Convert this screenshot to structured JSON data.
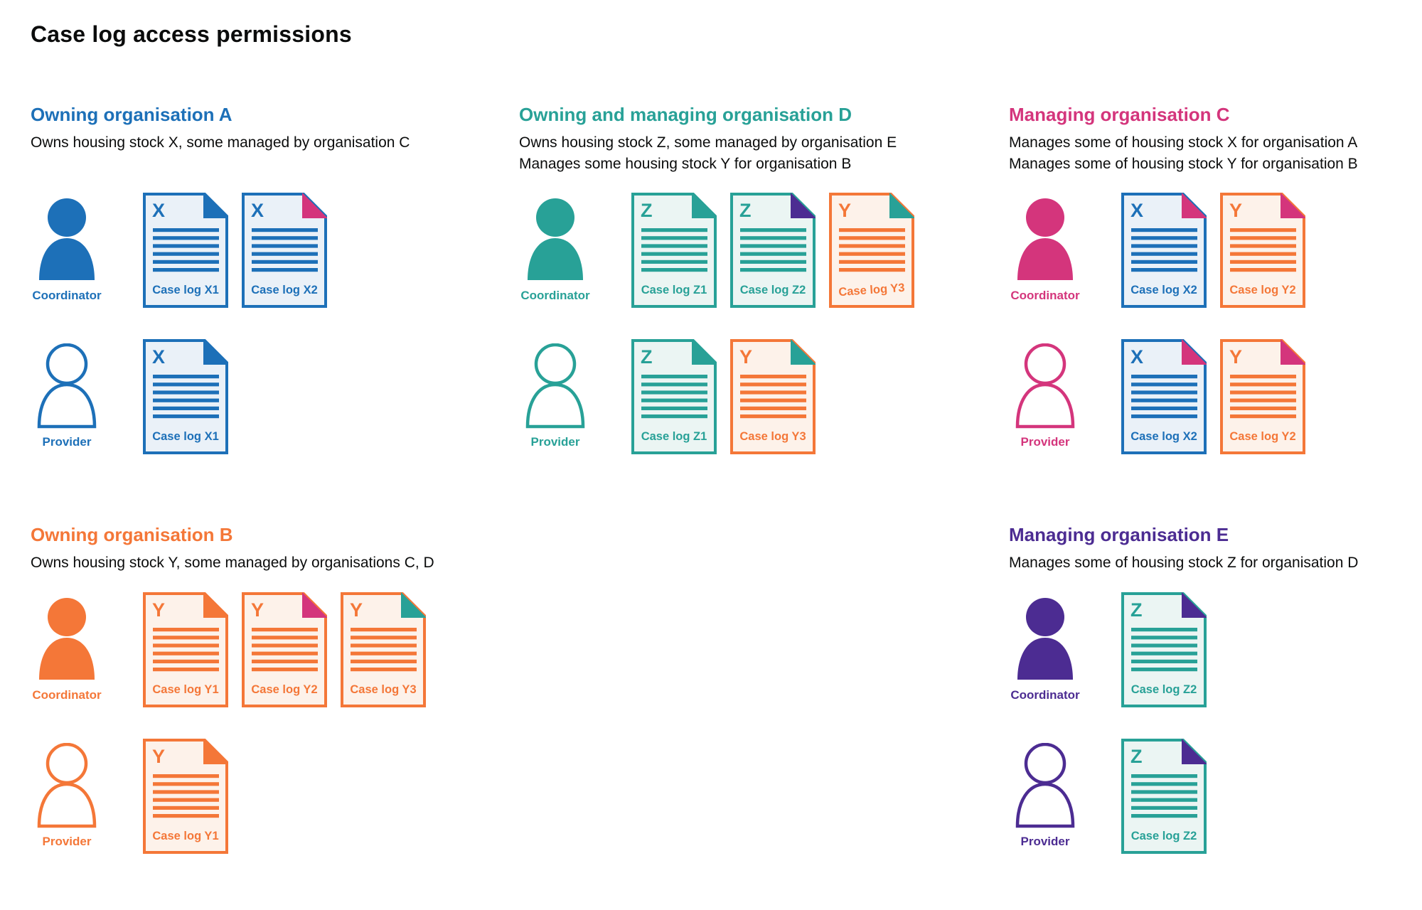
{
  "page_title": "Case log access permissions",
  "colors": {
    "blue": "#1d70b8",
    "teal": "#28a197",
    "pink": "#d4357c",
    "orange": "#f47738",
    "purple": "#4c2c92",
    "text": "#0b0c0c",
    "fills": {
      "blue": "#eaf1f8",
      "teal": "#ebf5f3",
      "orange": "#fdf2ea"
    }
  },
  "sections": [
    {
      "title": "Owning organisation A",
      "color": "blue",
      "description": [
        "Owns housing stock X, some managed by organisation C"
      ],
      "layout": {
        "col": 1,
        "row": 1
      },
      "rows": [
        {
          "role": "Coordinator",
          "person_style": "filled",
          "documents": [
            {
              "letter": "X",
              "label": "Case log X1",
              "color": "blue",
              "fold": "blue"
            },
            {
              "letter": "X",
              "label": "Case log X2",
              "color": "blue",
              "fold": "pink"
            }
          ]
        },
        {
          "role": "Provider",
          "person_style": "outline",
          "documents": [
            {
              "letter": "X",
              "label": "Case log X1",
              "color": "blue",
              "fold": "blue"
            }
          ]
        }
      ]
    },
    {
      "title": "Owning and managing organisation D",
      "color": "teal",
      "description": [
        "Owns housing stock Z, some managed by organisation E",
        "Manages some housing stock Y for organisation B"
      ],
      "layout": {
        "col": 2,
        "row": 1
      },
      "rows": [
        {
          "role": "Coordinator",
          "person_style": "filled",
          "documents": [
            {
              "letter": "Z",
              "label": "Case log Z1",
              "color": "teal",
              "fold": "teal"
            },
            {
              "letter": "Z",
              "label": "Case log Z2",
              "color": "teal",
              "fold": "purple"
            },
            {
              "letter": "Y",
              "label": "Case log Y3",
              "color": "orange",
              "fold": "teal",
              "tilted": true
            }
          ]
        },
        {
          "role": "Provider",
          "person_style": "outline",
          "documents": [
            {
              "letter": "Z",
              "label": "Case log Z1",
              "color": "teal",
              "fold": "teal"
            },
            {
              "letter": "Y",
              "label": "Case log Y3",
              "color": "orange",
              "fold": "teal"
            }
          ]
        }
      ]
    },
    {
      "title": "Managing organisation C",
      "color": "pink",
      "description": [
        "Manages some of housing stock X for organisation A",
        "Manages some of housing stock Y for organisation B"
      ],
      "layout": {
        "col": 3,
        "row": 1
      },
      "rows": [
        {
          "role": "Coordinator",
          "person_style": "filled",
          "documents": [
            {
              "letter": "X",
              "label": "Case log X2",
              "color": "blue",
              "fold": "pink"
            },
            {
              "letter": "Y",
              "label": "Case log Y2",
              "color": "orange",
              "fold": "pink"
            }
          ]
        },
        {
          "role": "Provider",
          "person_style": "outline",
          "documents": [
            {
              "letter": "X",
              "label": "Case log X2",
              "color": "blue",
              "fold": "pink"
            },
            {
              "letter": "Y",
              "label": "Case log Y2",
              "color": "orange",
              "fold": "pink"
            }
          ]
        }
      ]
    },
    {
      "title": "Owning organisation B",
      "color": "orange",
      "description": [
        "Owns housing stock Y, some managed by organisations C, D"
      ],
      "layout": {
        "col": 1,
        "row": 2
      },
      "rows": [
        {
          "role": "Coordinator",
          "person_style": "filled",
          "documents": [
            {
              "letter": "Y",
              "label": "Case log Y1",
              "color": "orange",
              "fold": "orange"
            },
            {
              "letter": "Y",
              "label": "Case log Y2",
              "color": "orange",
              "fold": "pink"
            },
            {
              "letter": "Y",
              "label": "Case log Y3",
              "color": "orange",
              "fold": "teal"
            }
          ]
        },
        {
          "role": "Provider",
          "person_style": "outline",
          "documents": [
            {
              "letter": "Y",
              "label": "Case log Y1",
              "color": "orange",
              "fold": "orange"
            }
          ]
        }
      ]
    },
    {
      "title": "Managing organisation E",
      "color": "purple",
      "description": [
        "Manages some of housing stock Z for organisation D"
      ],
      "layout": {
        "col": 3,
        "row": 2
      },
      "rows": [
        {
          "role": "Coordinator",
          "person_style": "filled",
          "documents": [
            {
              "letter": "Z",
              "label": "Case log Z2",
              "color": "teal",
              "fold": "purple"
            }
          ]
        },
        {
          "role": "Provider",
          "person_style": "outline",
          "documents": [
            {
              "letter": "Z",
              "label": "Case log Z2",
              "color": "teal",
              "fold": "purple"
            }
          ]
        }
      ]
    }
  ]
}
